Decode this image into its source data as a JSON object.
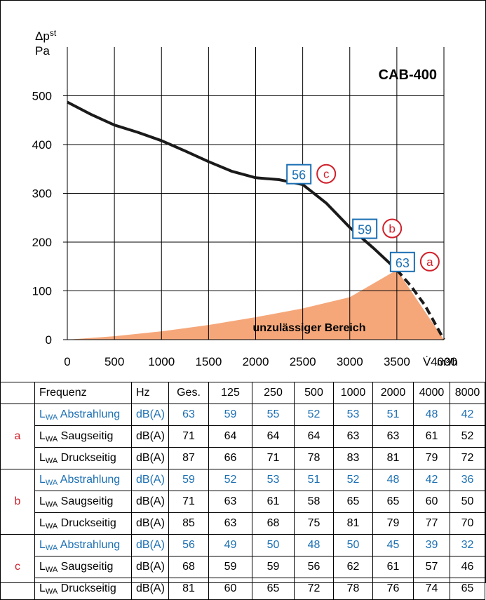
{
  "chart_data": {
    "type": "line",
    "title": "CAB-400",
    "ylabel_symbol": "Δp",
    "ylabel_sup": "st",
    "ylabel_unit": "Pa",
    "xlabel_symbol": "V̇",
    "xlabel_unit": "m³/h",
    "xlim": [
      0,
      4000
    ],
    "ylim": [
      0,
      600
    ],
    "xticks": [
      0,
      500,
      1000,
      1500,
      2000,
      2500,
      3000,
      3500,
      4000
    ],
    "yticks": [
      0,
      100,
      200,
      300,
      400,
      500
    ],
    "grid": true,
    "series": [
      {
        "style": "solid",
        "x": [
          0,
          250,
          500,
          750,
          1000,
          1250,
          1500,
          1750,
          2000,
          2250,
          2500,
          2750,
          3000,
          3250,
          3500
        ],
        "y": [
          487,
          462,
          440,
          425,
          408,
          387,
          365,
          345,
          332,
          328,
          318,
          280,
          230,
          188,
          143
        ]
      },
      {
        "style": "dashed",
        "x": [
          3500,
          3650,
          3800,
          4000
        ],
        "y": [
          143,
          110,
          70,
          0
        ]
      }
    ],
    "shaded_region": {
      "label": "unzulässiger Bereich",
      "x": [
        0,
        500,
        1000,
        1500,
        2000,
        2500,
        3000,
        3500,
        4000
      ],
      "y": [
        0,
        7,
        17,
        30,
        46,
        64,
        87,
        143,
        0
      ]
    },
    "annotations": [
      {
        "value": "56",
        "letter": "c",
        "x": 2750,
        "y": 340
      },
      {
        "value": "59",
        "letter": "b",
        "x": 3450,
        "y": 228
      },
      {
        "value": "63",
        "letter": "a",
        "x": 3850,
        "y": 160
      }
    ]
  },
  "table": {
    "header": [
      "Frequenz",
      "Hz",
      "Ges.",
      "125",
      "250",
      "500",
      "1000",
      "2000",
      "4000",
      "8000"
    ],
    "groups": [
      {
        "letter": "a",
        "rows": [
          {
            "label_main": "L",
            "label_sub": "WA",
            "label_rest": " Abstrahlung",
            "unit": "dB(A)",
            "values": [
              "63",
              "59",
              "55",
              "52",
              "53",
              "51",
              "48",
              "42"
            ],
            "highlight": true
          },
          {
            "label_main": "L",
            "label_sub": "WA",
            "label_rest": " Saugseitig",
            "unit": "dB(A)",
            "values": [
              "71",
              "64",
              "64",
              "64",
              "63",
              "63",
              "61",
              "52"
            ],
            "highlight": false
          },
          {
            "label_main": "L",
            "label_sub": "WA",
            "label_rest": "  Druckseitig",
            "unit": "dB(A)",
            "values": [
              "87",
              "66",
              "71",
              "78",
              "83",
              "81",
              "79",
              "72"
            ],
            "highlight": false
          }
        ]
      },
      {
        "letter": "b",
        "rows": [
          {
            "label_main": "L",
            "label_sub": "WA",
            "label_rest": " Abstrahlung",
            "unit": "dB(A)",
            "values": [
              "59",
              "52",
              "53",
              "51",
              "52",
              "48",
              "42",
              "36"
            ],
            "highlight": true
          },
          {
            "label_main": "L",
            "label_sub": "WA",
            "label_rest": " Saugseitig",
            "unit": "dB(A)",
            "values": [
              "71",
              "63",
              "61",
              "58",
              "65",
              "65",
              "60",
              "50"
            ],
            "highlight": false
          },
          {
            "label_main": "L",
            "label_sub": "WA",
            "label_rest": "  Druckseitig",
            "unit": "dB(A)",
            "values": [
              "85",
              "63",
              "68",
              "75",
              "81",
              "79",
              "77",
              "70"
            ],
            "highlight": false
          }
        ]
      },
      {
        "letter": "c",
        "rows": [
          {
            "label_main": "L",
            "label_sub": "WA",
            "label_rest": " Abstrahlung",
            "unit": "dB(A)",
            "values": [
              "56",
              "49",
              "50",
              "48",
              "50",
              "45",
              "39",
              "32"
            ],
            "highlight": true
          },
          {
            "label_main": "L",
            "label_sub": "WA",
            "label_rest": " Saugseitig",
            "unit": "dB(A)",
            "values": [
              "68",
              "59",
              "59",
              "56",
              "62",
              "61",
              "57",
              "46"
            ],
            "highlight": false
          },
          {
            "label_main": "L",
            "label_sub": "WA",
            "label_rest": "  Druckseitig",
            "unit": "dB(A)",
            "values": [
              "81",
              "60",
              "65",
              "72",
              "78",
              "76",
              "74",
              "65"
            ],
            "highlight": false
          }
        ]
      }
    ]
  },
  "colors": {
    "curve": "#1a1a1a",
    "shade": "#f5a77a",
    "badge_blue": "#1b6fb3",
    "letter_red": "#d0202a",
    "grid": "#000000"
  }
}
